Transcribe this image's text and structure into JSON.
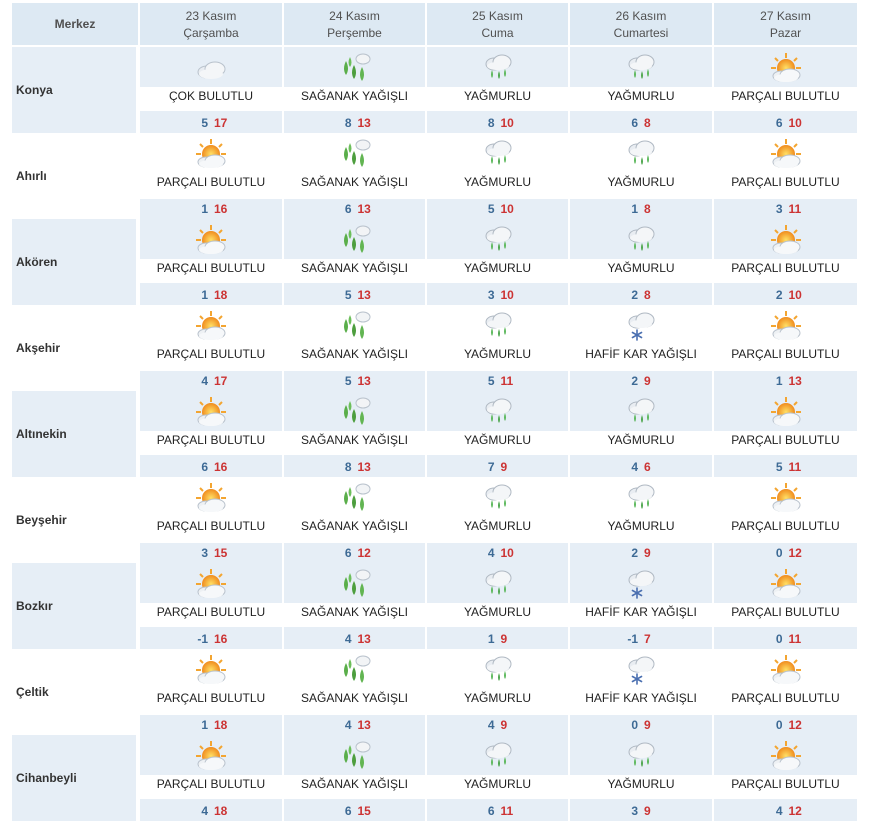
{
  "header": {
    "center_label": "Merkez",
    "days": [
      {
        "date": "23 Kasım",
        "weekday": "Çarşamba"
      },
      {
        "date": "24 Kasım",
        "weekday": "Perşembe"
      },
      {
        "date": "25 Kasım",
        "weekday": "Cuma"
      },
      {
        "date": "26 Kasım",
        "weekday": "Cumartesi"
      },
      {
        "date": "27 Kasım",
        "weekday": "Pazar"
      }
    ]
  },
  "colors": {
    "header_bg": "#dde9f3",
    "row_shade": "#e6eef6",
    "min_temp": "#3d6a95",
    "max_temp": "#cc3333"
  },
  "rows": [
    {
      "city": "Konya",
      "shaded": true,
      "days": [
        {
          "icon": "cloudy-icon",
          "cond": "ÇOK BULUTLU",
          "min": "5",
          "max": "17"
        },
        {
          "icon": "showers-icon",
          "cond": "SAĞANAK YAĞIŞLI",
          "min": "8",
          "max": "13"
        },
        {
          "icon": "rain-icon",
          "cond": "YAĞMURLU",
          "min": "8",
          "max": "10"
        },
        {
          "icon": "rain-icon",
          "cond": "YAĞMURLU",
          "min": "6",
          "max": "8"
        },
        {
          "icon": "partly-cloudy-icon",
          "cond": "PARÇALI BULUTLU",
          "min": "6",
          "max": "10"
        }
      ]
    },
    {
      "city": "Ahırlı",
      "shaded": false,
      "days": [
        {
          "icon": "partly-cloudy-icon",
          "cond": "PARÇALI BULUTLU",
          "min": "1",
          "max": "16"
        },
        {
          "icon": "showers-icon",
          "cond": "SAĞANAK YAĞIŞLI",
          "min": "6",
          "max": "13"
        },
        {
          "icon": "rain-icon",
          "cond": "YAĞMURLU",
          "min": "5",
          "max": "10"
        },
        {
          "icon": "rain-icon",
          "cond": "YAĞMURLU",
          "min": "1",
          "max": "8"
        },
        {
          "icon": "partly-cloudy-icon",
          "cond": "PARÇALI BULUTLU",
          "min": "3",
          "max": "11"
        }
      ]
    },
    {
      "city": "Akören",
      "shaded": true,
      "days": [
        {
          "icon": "partly-cloudy-icon",
          "cond": "PARÇALI BULUTLU",
          "min": "1",
          "max": "18"
        },
        {
          "icon": "showers-icon",
          "cond": "SAĞANAK YAĞIŞLI",
          "min": "5",
          "max": "13"
        },
        {
          "icon": "rain-icon",
          "cond": "YAĞMURLU",
          "min": "3",
          "max": "10"
        },
        {
          "icon": "rain-icon",
          "cond": "YAĞMURLU",
          "min": "2",
          "max": "8"
        },
        {
          "icon": "partly-cloudy-icon",
          "cond": "PARÇALI BULUTLU",
          "min": "2",
          "max": "10"
        }
      ]
    },
    {
      "city": "Akşehir",
      "shaded": false,
      "days": [
        {
          "icon": "partly-cloudy-icon",
          "cond": "PARÇALI BULUTLU",
          "min": "4",
          "max": "17"
        },
        {
          "icon": "showers-icon",
          "cond": "SAĞANAK YAĞIŞLI",
          "min": "5",
          "max": "13"
        },
        {
          "icon": "rain-icon",
          "cond": "YAĞMURLU",
          "min": "5",
          "max": "11"
        },
        {
          "icon": "light-snow-icon",
          "cond": "HAFİF KAR YAĞIŞLI",
          "min": "2",
          "max": "9"
        },
        {
          "icon": "partly-cloudy-icon",
          "cond": "PARÇALI BULUTLU",
          "min": "1",
          "max": "13"
        }
      ]
    },
    {
      "city": "Altınekin",
      "shaded": true,
      "days": [
        {
          "icon": "partly-cloudy-icon",
          "cond": "PARÇALI BULUTLU",
          "min": "6",
          "max": "16"
        },
        {
          "icon": "showers-icon",
          "cond": "SAĞANAK YAĞIŞLI",
          "min": "8",
          "max": "13"
        },
        {
          "icon": "rain-icon",
          "cond": "YAĞMURLU",
          "min": "7",
          "max": "9"
        },
        {
          "icon": "rain-icon",
          "cond": "YAĞMURLU",
          "min": "4",
          "max": "6"
        },
        {
          "icon": "partly-cloudy-icon",
          "cond": "PARÇALI BULUTLU",
          "min": "5",
          "max": "11"
        }
      ]
    },
    {
      "city": "Beyşehir",
      "shaded": false,
      "days": [
        {
          "icon": "partly-cloudy-icon",
          "cond": "PARÇALI BULUTLU",
          "min": "3",
          "max": "15"
        },
        {
          "icon": "showers-icon",
          "cond": "SAĞANAK YAĞIŞLI",
          "min": "6",
          "max": "12"
        },
        {
          "icon": "rain-icon",
          "cond": "YAĞMURLU",
          "min": "4",
          "max": "10"
        },
        {
          "icon": "rain-icon",
          "cond": "YAĞMURLU",
          "min": "2",
          "max": "9"
        },
        {
          "icon": "partly-cloudy-icon",
          "cond": "PARÇALI BULUTLU",
          "min": "0",
          "max": "12"
        }
      ]
    },
    {
      "city": "Bozkır",
      "shaded": true,
      "days": [
        {
          "icon": "partly-cloudy-icon",
          "cond": "PARÇALI BULUTLU",
          "min": "-1",
          "max": "16"
        },
        {
          "icon": "showers-icon",
          "cond": "SAĞANAK YAĞIŞLI",
          "min": "4",
          "max": "13"
        },
        {
          "icon": "rain-icon",
          "cond": "YAĞMURLU",
          "min": "1",
          "max": "9"
        },
        {
          "icon": "light-snow-icon",
          "cond": "HAFİF KAR YAĞIŞLI",
          "min": "-1",
          "max": "7"
        },
        {
          "icon": "partly-cloudy-icon",
          "cond": "PARÇALI BULUTLU",
          "min": "0",
          "max": "11"
        }
      ]
    },
    {
      "city": "Çeltik",
      "shaded": false,
      "days": [
        {
          "icon": "partly-cloudy-icon",
          "cond": "PARÇALI BULUTLU",
          "min": "1",
          "max": "18"
        },
        {
          "icon": "showers-icon",
          "cond": "SAĞANAK YAĞIŞLI",
          "min": "4",
          "max": "13"
        },
        {
          "icon": "rain-icon",
          "cond": "YAĞMURLU",
          "min": "4",
          "max": "9"
        },
        {
          "icon": "light-snow-icon",
          "cond": "HAFİF KAR YAĞIŞLI",
          "min": "0",
          "max": "9"
        },
        {
          "icon": "partly-cloudy-icon",
          "cond": "PARÇALI BULUTLU",
          "min": "0",
          "max": "12"
        }
      ]
    },
    {
      "city": "Cihanbeyli",
      "shaded": true,
      "days": [
        {
          "icon": "partly-cloudy-icon",
          "cond": "PARÇALI BULUTLU",
          "min": "4",
          "max": "18"
        },
        {
          "icon": "showers-icon",
          "cond": "SAĞANAK YAĞIŞLI",
          "min": "6",
          "max": "15"
        },
        {
          "icon": "rain-icon",
          "cond": "YAĞMURLU",
          "min": "6",
          "max": "11"
        },
        {
          "icon": "rain-icon",
          "cond": "YAĞMURLU",
          "min": "3",
          "max": "9"
        },
        {
          "icon": "partly-cloudy-icon",
          "cond": "PARÇALI BULUTLU",
          "min": "4",
          "max": "12"
        }
      ]
    }
  ]
}
